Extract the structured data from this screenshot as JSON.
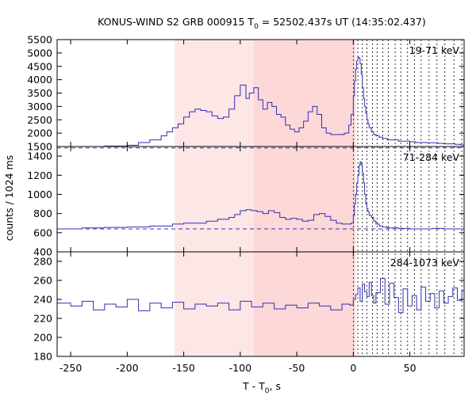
{
  "chart_data": {
    "type": "line",
    "title_main": "KONUS-WIND S2 GRB 000915 T",
    "title_sub": "0",
    "title_rest": " = 52502.437s UT (14:35:02.437)",
    "xlabel_main": "T - T",
    "xlabel_sub": "0",
    "xlabel_rest": ", s",
    "ylabel": "counts / 1024 ms",
    "xlim": [
      -262,
      98
    ],
    "xticks": [
      -250,
      -200,
      -150,
      -100,
      -50,
      0,
      50
    ],
    "colors": {
      "line": "#3030b0",
      "background_dashed": "#3030b0",
      "shade_light": "#fde6e6",
      "shade_dark": "#fcd8d8",
      "vlines": "#000000"
    },
    "shaded_regions": [
      {
        "x0": -158,
        "x1": -88,
        "style": "light"
      },
      {
        "x0": -88,
        "x1": 2,
        "style": "dark"
      }
    ],
    "vlines_dotted": [
      0,
      4,
      8,
      12,
      17,
      21,
      26,
      31,
      37,
      42,
      48,
      54,
      60,
      67,
      74,
      81,
      89,
      96
    ],
    "panels": [
      {
        "band": "19-71 keV",
        "ylim": [
          1500,
          5500
        ],
        "yticks": [
          1500,
          2000,
          2500,
          3000,
          3500,
          4000,
          4500,
          5000,
          5500
        ],
        "background": 1450,
        "x": [
          -262,
          -240,
          -220,
          -200,
          -190,
          -180,
          -170,
          -165,
          -160,
          -155,
          -150,
          -145,
          -140,
          -135,
          -130,
          -125,
          -120,
          -115,
          -110,
          -105,
          -100,
          -95,
          -92,
          -88,
          -84,
          -80,
          -76,
          -72,
          -68,
          -64,
          -60,
          -56,
          -52,
          -48,
          -44,
          -40,
          -36,
          -32,
          -28,
          -24,
          -20,
          -16,
          -12,
          -8,
          -4,
          -2,
          0,
          1,
          2,
          3,
          4,
          5,
          6,
          7,
          8,
          9,
          10,
          11,
          12,
          13,
          14,
          16,
          18,
          20,
          23,
          26,
          30,
          35,
          40,
          45,
          50,
          55,
          60,
          65,
          70,
          75,
          80,
          85,
          90,
          95,
          98
        ],
        "values": [
          1450,
          1480,
          1520,
          1550,
          1650,
          1750,
          1900,
          2050,
          2200,
          2350,
          2600,
          2800,
          2900,
          2850,
          2800,
          2650,
          2550,
          2600,
          2900,
          3400,
          3800,
          3300,
          3500,
          3700,
          3250,
          2900,
          3150,
          3000,
          2700,
          2600,
          2300,
          2150,
          2050,
          2200,
          2450,
          2800,
          3000,
          2700,
          2200,
          2000,
          1950,
          1950,
          1950,
          2000,
          2300,
          2700,
          3400,
          3950,
          4400,
          4700,
          4850,
          4800,
          4600,
          4200,
          3700,
          3300,
          3000,
          2750,
          2500,
          2350,
          2200,
          2050,
          1950,
          1900,
          1850,
          1800,
          1750,
          1750,
          1700,
          1700,
          1680,
          1650,
          1650,
          1640,
          1640,
          1620,
          1600,
          1600,
          1580,
          1560,
          1550
        ]
      },
      {
        "band": "71-284 keV",
        "ylim": [
          400,
          1500
        ],
        "yticks": [
          400,
          600,
          800,
          1000,
          1200,
          1400
        ],
        "background": 640,
        "x": [
          -262,
          -240,
          -220,
          -200,
          -180,
          -160,
          -150,
          -140,
          -130,
          -120,
          -110,
          -105,
          -100,
          -95,
          -90,
          -85,
          -80,
          -75,
          -70,
          -65,
          -60,
          -55,
          -50,
          -45,
          -40,
          -35,
          -30,
          -25,
          -20,
          -15,
          -10,
          -5,
          -2,
          0,
          1,
          2,
          3,
          4,
          5,
          6,
          7,
          8,
          9,
          10,
          11,
          12,
          13,
          14,
          16,
          18,
          20,
          23,
          26,
          30,
          35,
          40,
          50,
          60,
          70,
          80,
          90,
          98
        ],
        "values": [
          640,
          650,
          655,
          660,
          670,
          690,
          700,
          700,
          720,
          740,
          760,
          790,
          830,
          840,
          830,
          820,
          800,
          830,
          810,
          760,
          740,
          750,
          740,
          720,
          730,
          790,
          800,
          770,
          730,
          700,
          690,
          690,
          700,
          780,
          900,
          1000,
          1120,
          1200,
          1300,
          1340,
          1310,
          1220,
          1120,
          1000,
          900,
          850,
          820,
          780,
          760,
          720,
          690,
          670,
          660,
          650,
          650,
          645,
          640,
          640,
          645,
          640,
          640,
          635
        ]
      },
      {
        "band": "284-1073 keV",
        "ylim": [
          180,
          290
        ],
        "yticks": [
          180,
          200,
          220,
          240,
          260,
          280
        ],
        "x": [
          -262,
          -250,
          -240,
          -230,
          -220,
          -210,
          -200,
          -190,
          -180,
          -170,
          -160,
          -150,
          -140,
          -130,
          -120,
          -110,
          -100,
          -90,
          -80,
          -70,
          -60,
          -50,
          -40,
          -30,
          -20,
          -10,
          -3,
          0,
          2,
          4,
          6,
          8,
          10,
          12,
          14,
          16,
          18,
          20,
          24,
          28,
          32,
          36,
          40,
          44,
          48,
          52,
          56,
          60,
          64,
          68,
          72,
          76,
          80,
          84,
          88,
          92,
          96,
          98
        ],
        "values": [
          236,
          233,
          238,
          229,
          235,
          232,
          240,
          228,
          236,
          231,
          237,
          230,
          235,
          233,
          236,
          229,
          238,
          232,
          236,
          230,
          234,
          231,
          236,
          233,
          229,
          235,
          234,
          240,
          245,
          252,
          238,
          256,
          248,
          243,
          258,
          244,
          236,
          247,
          262,
          235,
          257,
          242,
          226,
          251,
          233,
          244,
          229,
          253,
          238,
          246,
          231,
          249,
          236,
          243,
          252,
          239,
          249,
          242
        ]
      }
    ]
  }
}
